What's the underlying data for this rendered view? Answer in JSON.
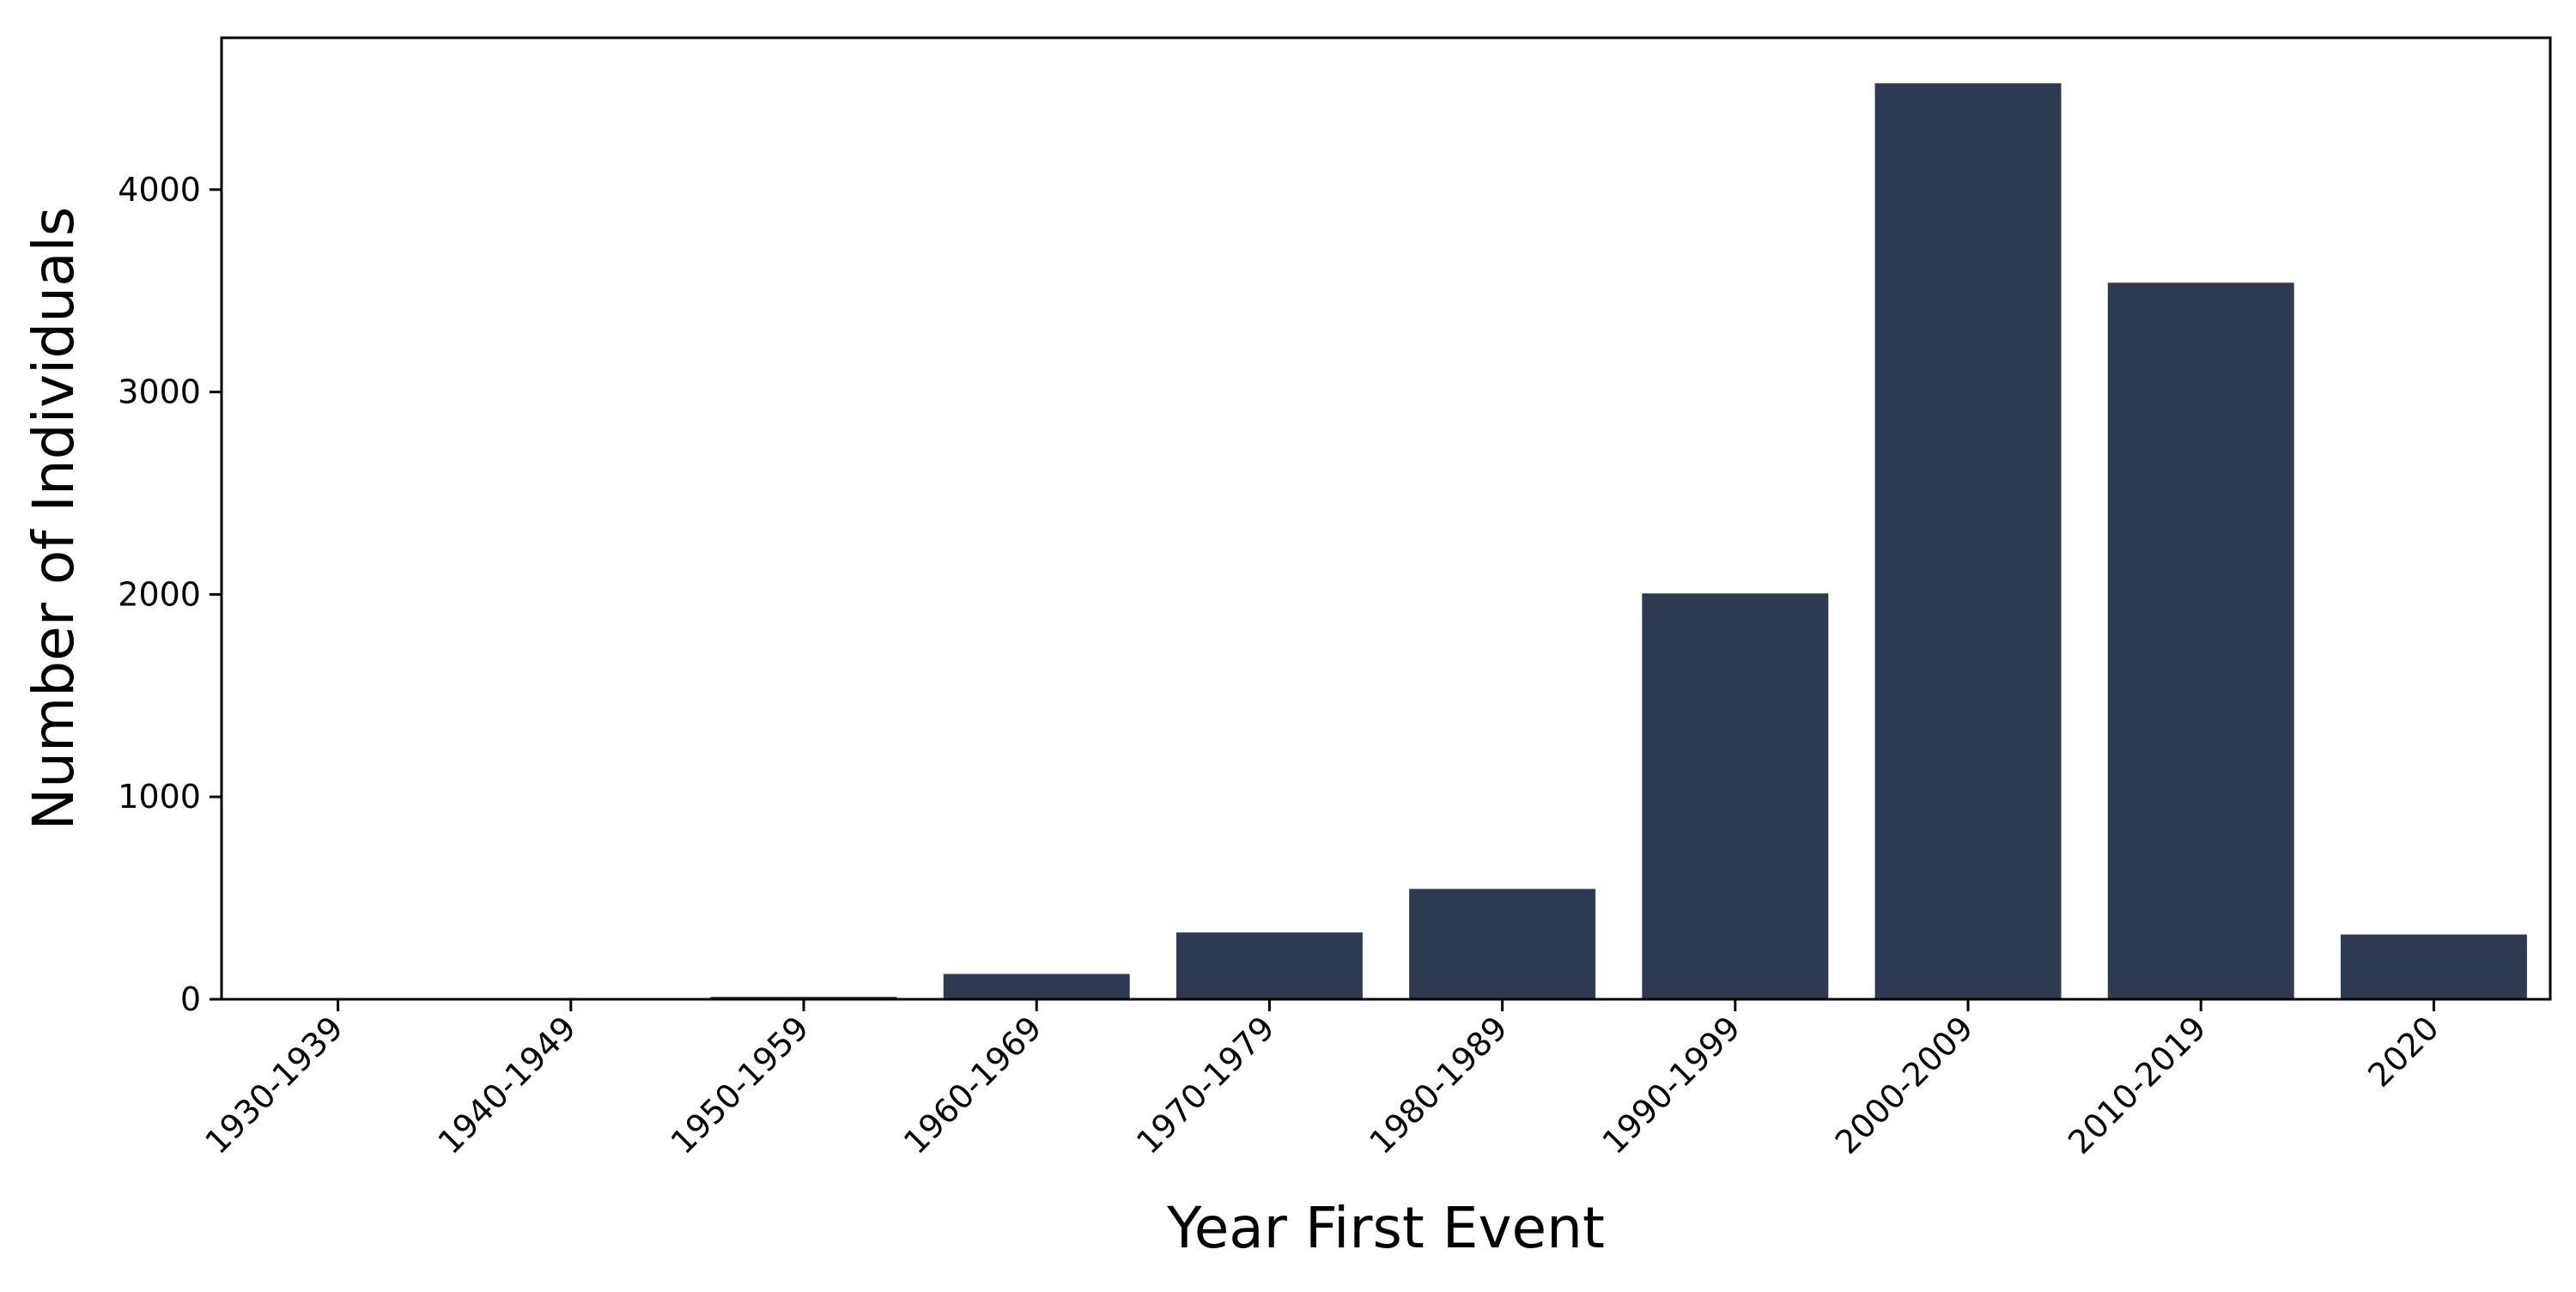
{
  "chart_data": {
    "type": "bar",
    "title": "",
    "xlabel": "Year First Event",
    "ylabel": "Number of Individuals",
    "categories": [
      "1930-1939",
      "1940-1949",
      "1950-1959",
      "1960-1969",
      "1970-1979",
      "1980-1989",
      "1990-1999",
      "2000-2009",
      "2010-2019",
      "2020"
    ],
    "values": [
      2,
      3,
      12,
      125,
      330,
      545,
      2005,
      4525,
      3540,
      320
    ],
    "ylim": [
      0,
      4750
    ],
    "yticks": [
      0,
      1000,
      2000,
      3000,
      4000
    ],
    "bar_color": "#2d3a52",
    "grid": false,
    "legend": "none"
  }
}
